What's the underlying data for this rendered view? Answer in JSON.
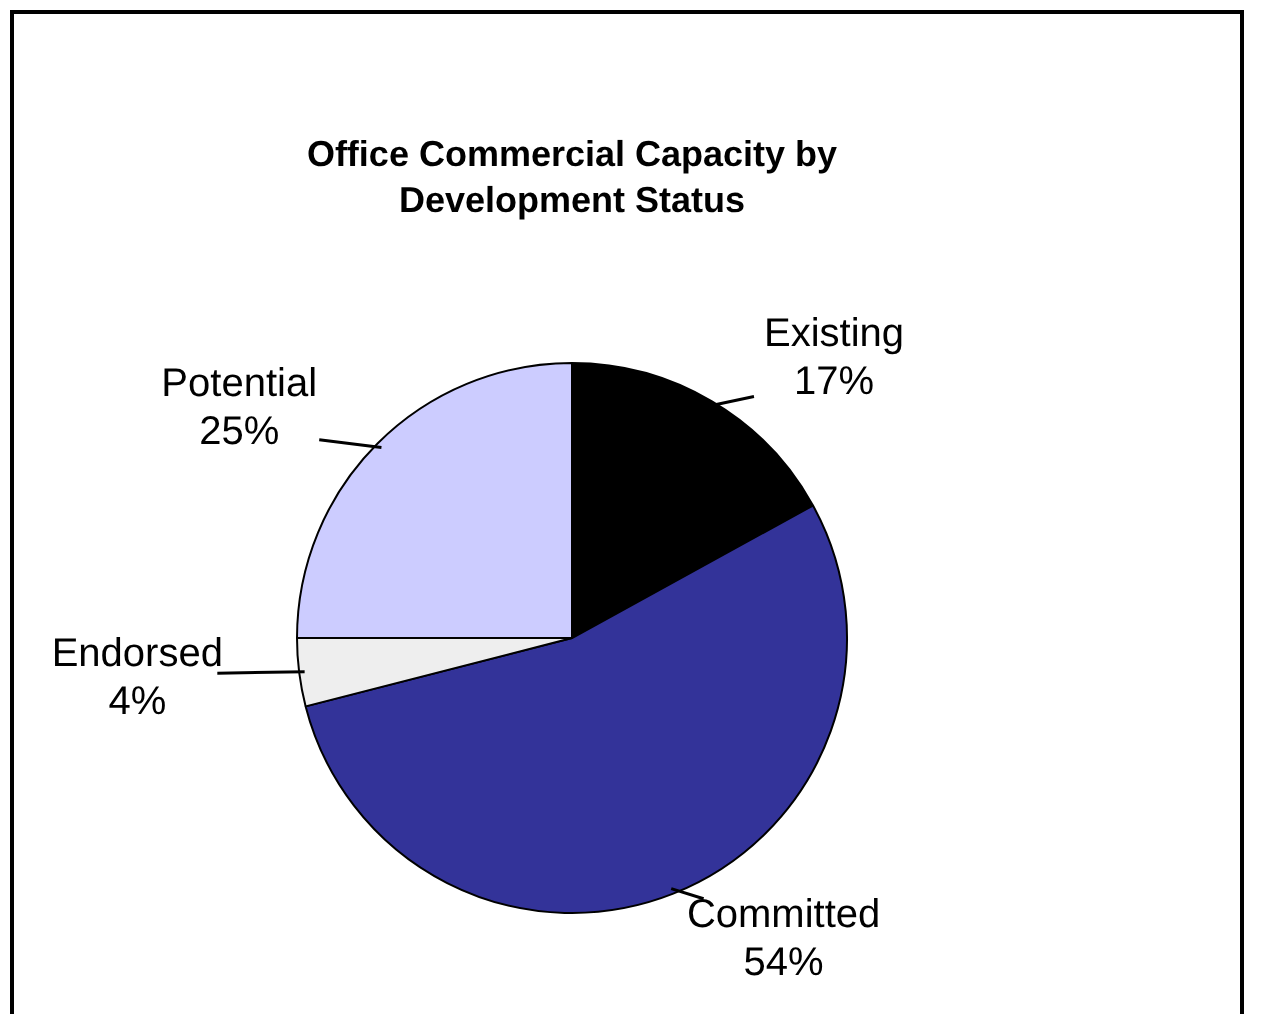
{
  "chart_data": {
    "type": "pie",
    "title": "Office Commercial Capacity by Development Status",
    "categories": [
      "Existing",
      "Committed",
      "Endorsed",
      "Potential"
    ],
    "values": [
      17,
      54,
      4,
      25
    ],
    "colors": [
      "#000000",
      "#333399",
      "#eeeeee",
      "#ccccff"
    ],
    "value_labels": [
      "17%",
      "54%",
      "4%",
      "25%"
    ],
    "legend": false
  }
}
